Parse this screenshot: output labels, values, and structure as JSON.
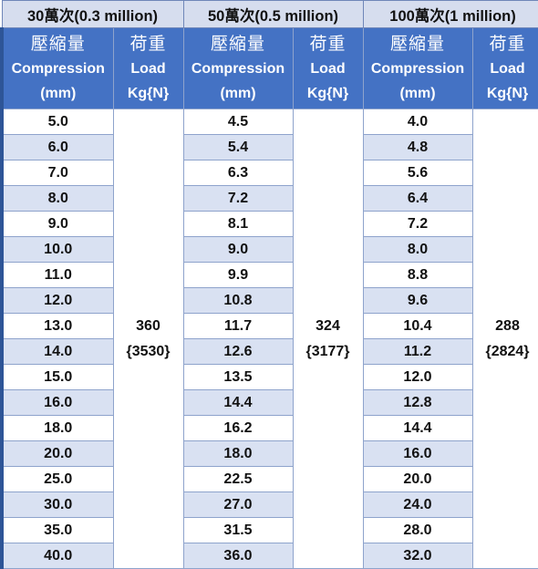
{
  "groups": [
    {
      "title": "30萬次(0.3 million)",
      "load_value": "360",
      "load_newton": "{3530}",
      "compressions": [
        "5.0",
        "6.0",
        "7.0",
        "8.0",
        "9.0",
        "10.0",
        "11.0",
        "12.0",
        "13.0",
        "14.0",
        "15.0",
        "16.0",
        "18.0",
        "20.0",
        "25.0",
        "30.0",
        "35.0",
        "40.0"
      ]
    },
    {
      "title": "50萬次(0.5 million)",
      "load_value": "324",
      "load_newton": "{3177}",
      "compressions": [
        "4.5",
        "5.4",
        "6.3",
        "7.2",
        "8.1",
        "9.0",
        "9.9",
        "10.8",
        "11.7",
        "12.6",
        "13.5",
        "14.4",
        "16.2",
        "18.0",
        "22.5",
        "27.0",
        "31.5",
        "36.0"
      ]
    },
    {
      "title": "100萬次(1 million)",
      "load_value": "288",
      "load_newton": "{2824}",
      "compressions": [
        "4.0",
        "4.8",
        "5.6",
        "6.4",
        "7.2",
        "8.0",
        "8.8",
        "9.6",
        "10.4",
        "11.2",
        "12.0",
        "12.8",
        "14.4",
        "16.0",
        "20.0",
        "24.0",
        "28.0",
        "32.0"
      ]
    }
  ],
  "headers": {
    "compression_zh": "壓縮量",
    "compression_en": "Compression",
    "compression_unit": "(mm)",
    "load_zh": "荷重",
    "load_en": "Load",
    "load_unit": "Kg{N}"
  },
  "colors": {
    "group_header_bg": "#d6ddee",
    "sub_header_bg": "#4472c4",
    "stripe_bg": "#d9e1f2",
    "border": "#8ea3cc"
  }
}
